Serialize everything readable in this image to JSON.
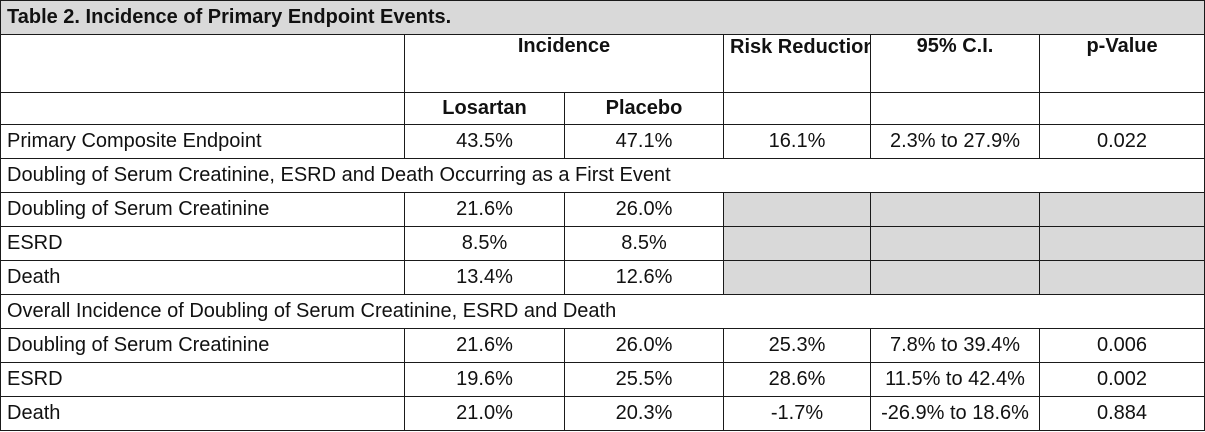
{
  "title": "Table 2. Incidence of Primary Endpoint Events.",
  "headers": {
    "incidence": "Incidence",
    "risk_reduction": "Risk Reduction",
    "ci": "95% C.I.",
    "p_value": "p-Value",
    "losartan": "Losartan",
    "placebo": "Placebo"
  },
  "primary": {
    "label": "Primary Composite Endpoint",
    "losartan": "43.5%",
    "placebo": "47.1%",
    "risk_reduction": "16.1%",
    "ci": "2.3% to 27.9%",
    "p_value": "0.022"
  },
  "section1": {
    "title": "Doubling of Serum Creatinine, ESRD and Death Occurring as a First Event",
    "rows": [
      {
        "label": "Doubling of Serum Creatinine",
        "losartan": "21.6%",
        "placebo": "26.0%"
      },
      {
        "label": "ESRD",
        "losartan": "8.5%",
        "placebo": "8.5%"
      },
      {
        "label": "Death",
        "losartan": "13.4%",
        "placebo": "12.6%"
      }
    ]
  },
  "section2": {
    "title": "Overall Incidence of Doubling of Serum Creatinine, ESRD and Death",
    "rows": [
      {
        "label": "Doubling of Serum Creatinine",
        "losartan": "21.6%",
        "placebo": "26.0%",
        "risk_reduction": "25.3%",
        "ci": "7.8% to 39.4%",
        "p_value": "0.006"
      },
      {
        "label": "ESRD",
        "losartan": "19.6%",
        "placebo": "25.5%",
        "risk_reduction": "28.6%",
        "ci": "11.5% to 42.4%",
        "p_value": "0.002"
      },
      {
        "label": "Death",
        "losartan": "21.0%",
        "placebo": "20.3%",
        "risk_reduction": "-1.7%",
        "ci": "-26.9% to 18.6%",
        "p_value": "0.884"
      }
    ]
  },
  "colors": {
    "shade": "#d9d9d9",
    "border": "#1a1a1a",
    "text": "#111111"
  }
}
